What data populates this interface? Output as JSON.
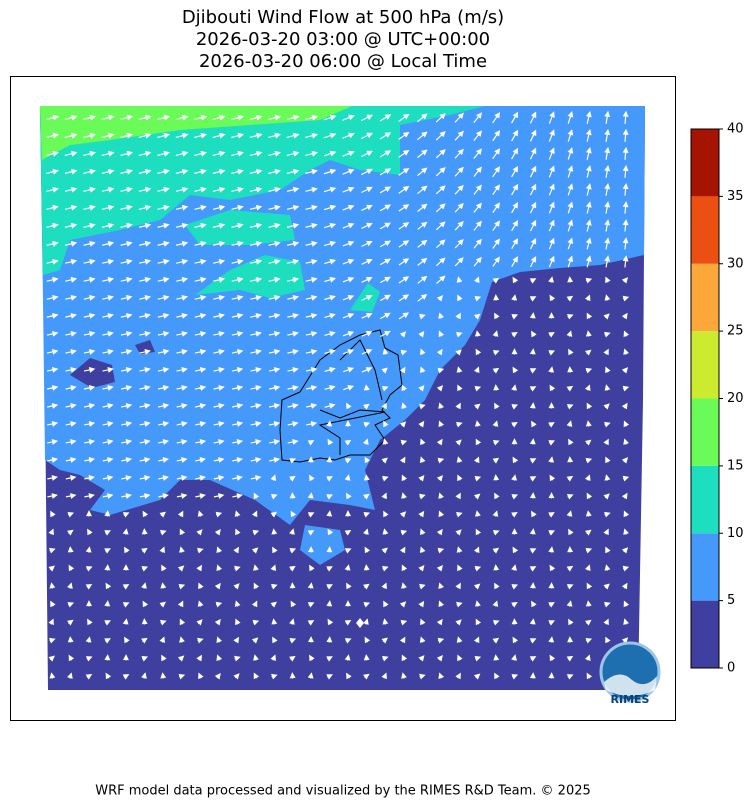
{
  "title": [
    "Djibouti Wind Flow at 500 hPa (m/s)",
    "2026-03-20 03:00 @ UTC+00:00",
    "2026-03-20 06:00 @ Local Time"
  ],
  "colorbar": {
    "ticks": [
      0,
      5,
      10,
      15,
      20,
      25,
      30,
      35,
      40
    ],
    "colors": [
      "#3f3f9f",
      "#4499fb",
      "#1ddfbf",
      "#6afb58",
      "#cdeb2e",
      "#fba73a",
      "#ec4f12",
      "#a51401"
    ]
  },
  "logo": "RIMES",
  "footer": "WRF model data processed and visualized by the RIMES R&D Team. © 2025"
}
